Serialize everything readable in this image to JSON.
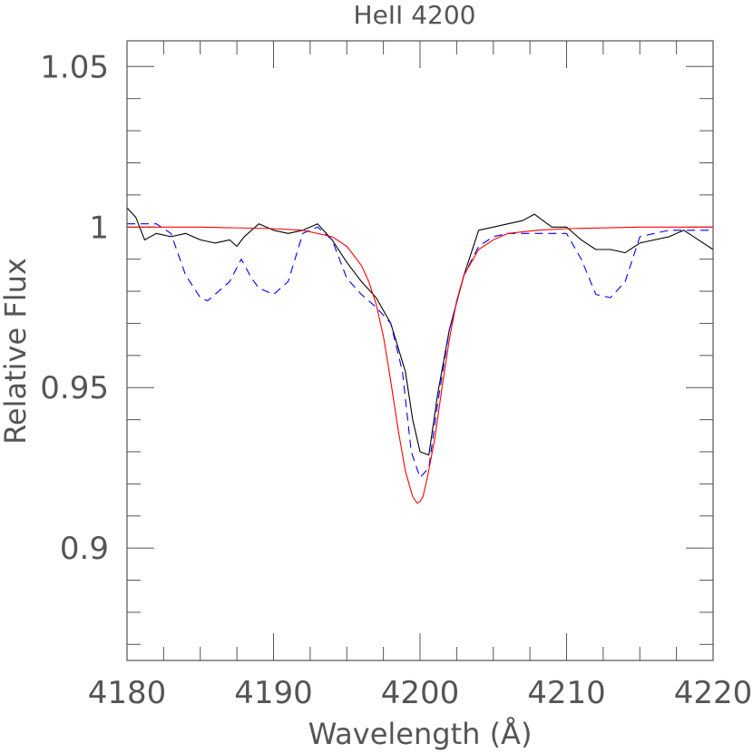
{
  "chart_data": {
    "type": "line",
    "title": "HeII 4200",
    "xlabel": "Wavelength (Å)",
    "ylabel": "Relative Flux",
    "xlim": [
      4180,
      4220
    ],
    "ylim": [
      0.865,
      1.058
    ],
    "x_ticks": [
      4180,
      4190,
      4200,
      4210,
      4220
    ],
    "x_tick_labels": [
      "4180",
      "4190",
      "4200",
      "4210",
      "4220"
    ],
    "y_ticks": [
      0.9,
      0.95,
      1.0,
      1.05
    ],
    "y_tick_labels": [
      "0.9",
      "0.95",
      "1",
      "1.05"
    ],
    "grid": false,
    "colors": {
      "observed": "#000000",
      "model_a": "#0000ff",
      "model_b": "#ff0000",
      "axes": "#555555"
    },
    "series": [
      {
        "line_style": "solid",
        "color": "#000000",
        "x": [
          4180,
          4180.6,
          4181.2,
          4182.0,
          4183.0,
          4184.0,
          4185.0,
          4186.0,
          4187.0,
          4187.5,
          4188.0,
          4189.0,
          4190.0,
          4191.0,
          4192.0,
          4193.0,
          4194.0,
          4195.0,
          4196.0,
          4197.0,
          4198.0,
          4199.0,
          4199.5,
          4200.0,
          4200.6,
          4201.2,
          4202.0,
          4203.0,
          4204.0,
          4205.0,
          4206.0,
          4207.0,
          4207.8,
          4209.0,
          4210.0,
          4211.0,
          4212.0,
          4213.0,
          4214.0,
          4215.0,
          4216.0,
          4217.0,
          4218.0,
          4219.0,
          4220.0
        ],
        "y": [
          1.006,
          1.003,
          0.996,
          0.998,
          0.997,
          0.998,
          0.996,
          0.995,
          0.996,
          0.994,
          0.997,
          1.001,
          0.999,
          0.998,
          0.999,
          1.001,
          0.996,
          0.989,
          0.983,
          0.978,
          0.97,
          0.955,
          0.94,
          0.93,
          0.929,
          0.948,
          0.968,
          0.985,
          0.999,
          1.0,
          1.001,
          1.002,
          1.004,
          1.0,
          1.0,
          0.996,
          0.993,
          0.993,
          0.992,
          0.995,
          0.996,
          0.997,
          0.999,
          0.996,
          0.993
        ]
      },
      {
        "line_style": "dashed",
        "color": "#0000ff",
        "x": [
          4180,
          4181,
          4182,
          4183,
          4184,
          4185,
          4185.5,
          4186,
          4187,
          4187.8,
          4188.5,
          4189,
          4190,
          4191,
          4192,
          4193,
          4194,
          4195,
          4196,
          4197,
          4198,
          4198.8,
          4199.4,
          4200,
          4200.6,
          4201.2,
          4202,
          4203,
          4204,
          4205,
          4206,
          4207,
          4208,
          4209,
          4210,
          4211,
          4212,
          4213,
          4214,
          4215,
          4216,
          4217,
          4218,
          4219,
          4220
        ],
        "y": [
          1.001,
          1.001,
          1.001,
          0.998,
          0.985,
          0.978,
          0.977,
          0.979,
          0.983,
          0.99,
          0.984,
          0.981,
          0.979,
          0.983,
          0.998,
          1.0,
          0.996,
          0.984,
          0.979,
          0.975,
          0.97,
          0.955,
          0.93,
          0.922,
          0.925,
          0.945,
          0.968,
          0.985,
          0.994,
          0.997,
          0.998,
          0.998,
          0.998,
          0.998,
          0.998,
          0.99,
          0.979,
          0.978,
          0.983,
          0.997,
          0.998,
          0.999,
          0.999,
          0.999,
          0.999
        ]
      },
      {
        "line_style": "solid",
        "color": "#ff0000",
        "x": [
          4180,
          4185,
          4190,
          4192,
          4194,
          4195,
          4196,
          4196.5,
          4197,
          4197.5,
          4198,
          4198.5,
          4199,
          4199.5,
          4199.8,
          4200,
          4200.2,
          4200.5,
          4201,
          4201.5,
          4202,
          4202.5,
          4203,
          4204,
          4205,
          4206,
          4208,
          4210,
          4215,
          4220
        ],
        "y": [
          1.0,
          1.0,
          0.9995,
          0.999,
          0.997,
          0.994,
          0.988,
          0.983,
          0.976,
          0.966,
          0.952,
          0.937,
          0.924,
          0.916,
          0.914,
          0.9145,
          0.916,
          0.922,
          0.934,
          0.95,
          0.965,
          0.977,
          0.985,
          0.993,
          0.996,
          0.998,
          0.999,
          0.9995,
          1.0,
          1.0
        ]
      }
    ]
  }
}
